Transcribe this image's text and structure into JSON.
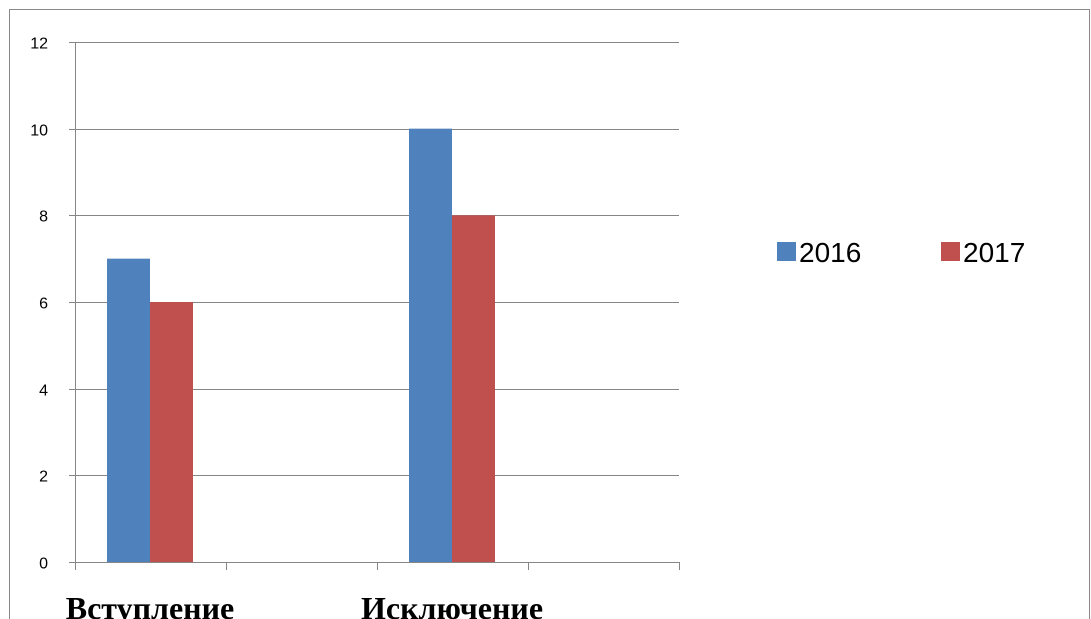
{
  "chart_data": {
    "type": "bar",
    "categories": [
      "Вступление",
      "Исключение"
    ],
    "series": [
      {
        "name": "2016",
        "values": [
          7,
          10
        ],
        "color": "#4f81bd"
      },
      {
        "name": "2017",
        "values": [
          6,
          8
        ],
        "color": "#c0504d"
      }
    ],
    "ylim": [
      0,
      12
    ],
    "yticks": [
      0,
      2,
      4,
      6,
      8,
      10,
      12
    ],
    "grid": true,
    "legend": "right",
    "title": "",
    "xlabel": "",
    "ylabel": ""
  }
}
